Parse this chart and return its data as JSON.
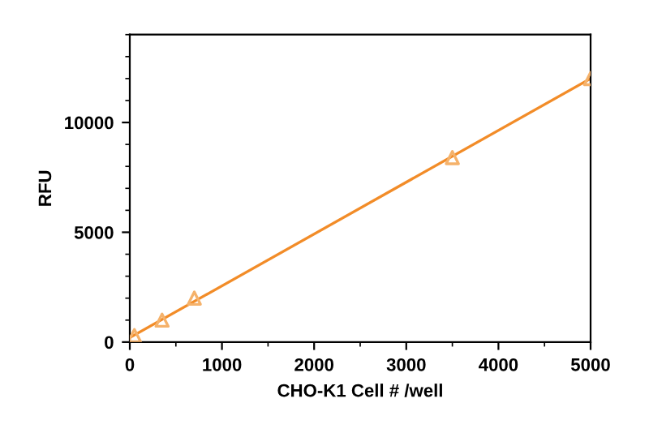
{
  "chart_data": {
    "type": "scatter",
    "xlabel": "CHO-K1 Cell # /well",
    "ylabel": "RFU",
    "x": [
      50,
      350,
      700,
      3500,
      5000
    ],
    "series": [
      {
        "color": "#f5b26b",
        "values": [
          300,
          1000,
          2000,
          8400,
          12000
        ],
        "marker": "triangle"
      },
      {
        "type": "line",
        "color": "#f28c28",
        "x": [
          0,
          5000
        ],
        "values": [
          200,
          12000
        ],
        "marker": "none",
        "line_style": "solid"
      }
    ],
    "xlim": [
      0,
      5000
    ],
    "ylim": [
      0,
      14000
    ],
    "xticks": [
      0,
      1000,
      2000,
      3000,
      4000,
      5000
    ],
    "yticks": [
      0,
      5000,
      10000
    ],
    "grid": false,
    "legend": false
  }
}
